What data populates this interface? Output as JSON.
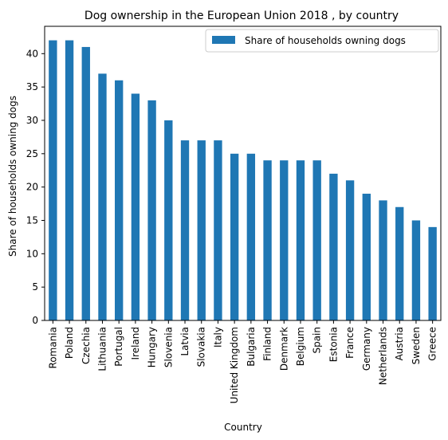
{
  "chart_data": {
    "type": "bar",
    "title": "Dog ownership in the European Union 2018 , by country",
    "xlabel": "Country",
    "ylabel": "Share of households owning dogs",
    "categories": [
      "Romania",
      "Poland",
      "Czechia",
      "Lithuania",
      "Portugal",
      "Ireland",
      "Hungary",
      "Slovenia",
      "Latvia",
      "Slovakia",
      "Italy",
      "United Kingdom",
      "Bulgaria",
      "Finland",
      "Denmark",
      "Belgium",
      "Spain",
      "Estonia",
      "France",
      "Germany",
      "Netherlands",
      "Austria",
      "Sweden",
      "Greece"
    ],
    "series": [
      {
        "name": "Share of households owning dogs",
        "values": [
          42,
          42,
          41,
          37,
          36,
          34,
          33,
          30,
          27,
          27,
          27,
          25,
          25,
          24,
          24,
          24,
          24,
          22,
          21,
          19,
          18,
          17,
          15,
          14
        ]
      }
    ],
    "ylim": [
      0,
      44.1
    ],
    "yticks": [
      0,
      5,
      10,
      15,
      20,
      25,
      30,
      35,
      40
    ],
    "grid": false,
    "legend_position": "top-right",
    "bar_color": "#1f77b4"
  }
}
